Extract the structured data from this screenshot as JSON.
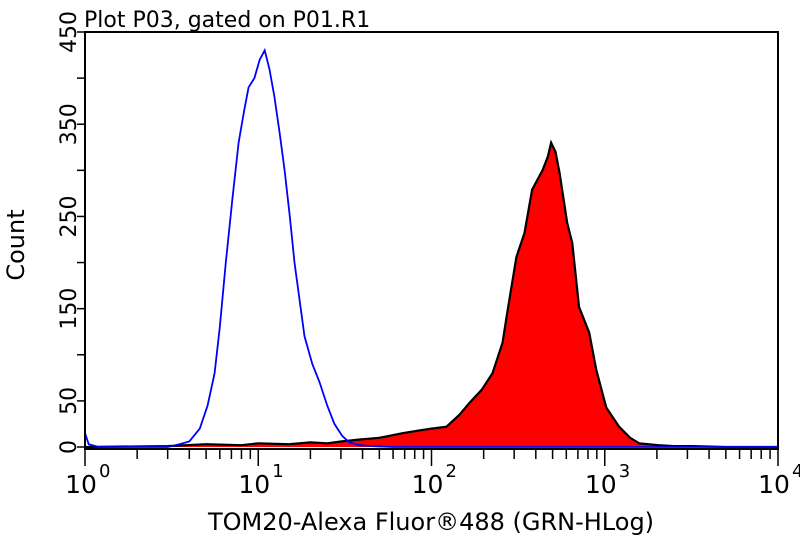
{
  "chart_data": {
    "type": "area",
    "title": "Plot P03, gated on P01.R1",
    "xlabel": "TOM20-Alexa Fluor®488 (GRN-HLog)",
    "ylabel": "Count",
    "xscale": "log",
    "xlim": [
      1,
      10000
    ],
    "ylim": [
      0,
      450
    ],
    "x_tick_labels": [
      {
        "base": "10",
        "exp": "0",
        "value": 1
      },
      {
        "base": "10",
        "exp": "1",
        "value": 10
      },
      {
        "base": "10",
        "exp": "2",
        "value": 100
      },
      {
        "base": "10",
        "exp": "3",
        "value": 1000
      },
      {
        "base": "10",
        "exp": "4",
        "value": 10000
      }
    ],
    "y_ticks": [
      0,
      50,
      100,
      150,
      200,
      250,
      300,
      350,
      400,
      450
    ],
    "y_tick_labels": [
      "0",
      "50",
      "150",
      "250",
      "350",
      "450"
    ],
    "grid": false,
    "series": [
      {
        "style": "outline",
        "color": "#0000ff",
        "points": [
          [
            1,
            15
          ],
          [
            1.05,
            3
          ],
          [
            1.2,
            0
          ],
          [
            3,
            0
          ],
          [
            3.5,
            3
          ],
          [
            4,
            6
          ],
          [
            4.6,
            20
          ],
          [
            5.1,
            45
          ],
          [
            5.6,
            80
          ],
          [
            6.0,
            130
          ],
          [
            6.5,
            200
          ],
          [
            7.1,
            270
          ],
          [
            7.7,
            330
          ],
          [
            8.3,
            365
          ],
          [
            8.8,
            390
          ],
          [
            9.5,
            400
          ],
          [
            10.2,
            420
          ],
          [
            10.9,
            430
          ],
          [
            11.6,
            410
          ],
          [
            12.4,
            380
          ],
          [
            13.3,
            340
          ],
          [
            14.2,
            300
          ],
          [
            15.2,
            250
          ],
          [
            16.2,
            200
          ],
          [
            17.3,
            160
          ],
          [
            18.5,
            120
          ],
          [
            20.5,
            90
          ],
          [
            22.6,
            70
          ],
          [
            25,
            45
          ],
          [
            27.5,
            25
          ],
          [
            30.5,
            12
          ],
          [
            33.6,
            5
          ],
          [
            38.5,
            2
          ],
          [
            45,
            1
          ],
          [
            60,
            0
          ],
          [
            10000,
            0
          ]
        ]
      },
      {
        "style": "filled",
        "color": "#ff0000",
        "outline": "#000000",
        "points": [
          [
            1,
            0
          ],
          [
            3,
            1
          ],
          [
            5,
            3
          ],
          [
            8,
            2
          ],
          [
            10,
            4
          ],
          [
            15,
            3
          ],
          [
            20,
            5
          ],
          [
            25,
            4
          ],
          [
            30,
            6
          ],
          [
            38,
            8
          ],
          [
            50,
            10
          ],
          [
            68,
            15
          ],
          [
            85,
            18
          ],
          [
            100,
            20
          ],
          [
            122,
            22
          ],
          [
            145,
            35
          ],
          [
            166,
            48
          ],
          [
            195,
            62
          ],
          [
            225,
            80
          ],
          [
            257,
            113
          ],
          [
            275,
            148
          ],
          [
            309,
            206
          ],
          [
            344,
            232
          ],
          [
            381,
            279
          ],
          [
            437,
            300
          ],
          [
            470,
            315
          ],
          [
            490,
            330
          ],
          [
            520,
            320
          ],
          [
            549,
            297
          ],
          [
            607,
            243
          ],
          [
            650,
            221
          ],
          [
            710,
            152
          ],
          [
            813,
            124
          ],
          [
            892,
            84
          ],
          [
            1020,
            43
          ],
          [
            1210,
            22
          ],
          [
            1400,
            10
          ],
          [
            1580,
            4
          ],
          [
            2050,
            2
          ],
          [
            2500,
            1
          ],
          [
            3200,
            1
          ],
          [
            5000,
            0
          ],
          [
            10000,
            0
          ]
        ]
      }
    ]
  }
}
